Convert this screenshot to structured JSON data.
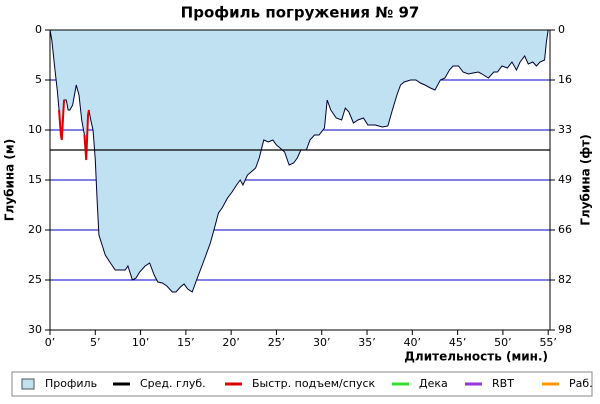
{
  "chart_data": {
    "type": "area",
    "title": "Профиль погружения № 97",
    "xlabel": "Длительность (мин.)",
    "ylabel": "Глубина (м)",
    "y2label": "Глубина (фт)",
    "xlim": [
      0,
      55.2
    ],
    "xticks": [
      {
        "value": 0,
        "label": "0’"
      },
      {
        "value": 5,
        "label": "5’"
      },
      {
        "value": 10,
        "label": "10’"
      },
      {
        "value": 15,
        "label": "15’"
      },
      {
        "value": 20,
        "label": "20’"
      },
      {
        "value": 25,
        "label": "25’"
      },
      {
        "value": 30,
        "label": "30’"
      },
      {
        "value": 35,
        "label": "35’"
      },
      {
        "value": 40,
        "label": "40’"
      },
      {
        "value": 45,
        "label": "45’"
      },
      {
        "value": 50,
        "label": "50’"
      },
      {
        "value": 55,
        "label": "55’"
      }
    ],
    "ylim": [
      0,
      30
    ],
    "yticks": [
      0,
      5,
      10,
      15,
      20,
      25,
      30
    ],
    "y2lim": [
      0,
      98.4
    ],
    "y2ticks": [
      0,
      {
        "value": 16.4,
        "label": "16"
      },
      {
        "value": 32.8,
        "label": "33"
      },
      {
        "value": 49.2,
        "label": "49"
      },
      {
        "value": 65.6,
        "label": "66"
      },
      {
        "value": 82,
        "label": "82"
      },
      {
        "value": 98.4,
        "label": "98"
      }
    ],
    "grid": true,
    "x": [
      0,
      0.2,
      0.55,
      0.8,
      1.0,
      1.2,
      1.3,
      1.55,
      1.8,
      2.0,
      2.2,
      2.5,
      2.9,
      3.2,
      3.5,
      3.8,
      4.0,
      4.2,
      4.3,
      4.5,
      4.75,
      5.0,
      5.2,
      5.4,
      5.75,
      6.1,
      6.6,
      7.2,
      7.7,
      8.3,
      8.6,
      9.1,
      9.5,
      9.9,
      10.5,
      11.0,
      11.5,
      11.9,
      12.4,
      12.9,
      13.5,
      13.9,
      14.4,
      14.8,
      15.2,
      15.7,
      16.1,
      16.6,
      17.1,
      17.7,
      18.1,
      18.6,
      19.0,
      19.6,
      20.1,
      20.6,
      21.0,
      21.3,
      21.8,
      22.2,
      22.7,
      23.1,
      23.6,
      24.1,
      24.6,
      25.0,
      25.4,
      25.9,
      26.4,
      26.9,
      27.3,
      27.7,
      28.3,
      28.7,
      29.2,
      29.7,
      30.3,
      30.6,
      31.0,
      31.6,
      32.2,
      32.6,
      33.0,
      33.5,
      34.0,
      34.6,
      35.1,
      35.9,
      36.7,
      37.3,
      37.8,
      38.3,
      38.7,
      39.1,
      39.8,
      40.4,
      40.9,
      41.4,
      42.0,
      42.5,
      43.1,
      43.6,
      44.1,
      44.5,
      45.1,
      45.6,
      46.2,
      46.7,
      47.3,
      47.7,
      48.4,
      49.0,
      49.4,
      49.9,
      50.5,
      51.0,
      51.5,
      51.9,
      52.4,
      52.8,
      53.3,
      53.7,
      54.1,
      54.6,
      54.8,
      55.0
    ],
    "series": [
      {
        "name": "Профиль",
        "color": "#bfe1f2",
        "line_color": "#000033",
        "values": [
          0,
          1,
          4,
          6,
          8,
          10.5,
          11,
          7,
          7,
          8,
          8,
          7.5,
          5.5,
          6.5,
          9,
          10.5,
          13,
          8.5,
          8,
          9,
          10,
          13,
          17,
          20.5,
          21.5,
          22.5,
          23.2,
          24,
          24,
          24,
          23.6,
          25,
          24.8,
          24.2,
          23.6,
          23.3,
          24.5,
          25.2,
          25.3,
          25.6,
          26.2,
          26.2,
          25.7,
          25.4,
          25.9,
          26.2,
          25.2,
          24,
          22.8,
          21.3,
          20,
          18.3,
          17.8,
          16.8,
          16.2,
          15.5,
          15,
          15.5,
          14.5,
          14.2,
          13.8,
          12.8,
          11,
          11.2,
          11,
          11.5,
          11.8,
          12.2,
          13.5,
          13.3,
          12.8,
          12,
          12,
          11,
          10.5,
          10.5,
          9.8,
          7,
          8,
          8.8,
          9,
          7.8,
          8.2,
          9.3,
          9,
          8.8,
          9.5,
          9.5,
          9.7,
          9.6,
          8,
          6.5,
          5.5,
          5.2,
          5,
          5,
          5.3,
          5.5,
          5.8,
          6,
          5,
          4.8,
          4,
          3.6,
          3.6,
          4.2,
          4.4,
          4.3,
          4.2,
          4.4,
          4.8,
          4.2,
          4.2,
          3.6,
          3.8,
          3.2,
          4,
          3.2,
          2.6,
          3.4,
          3.2,
          3.6,
          3.2,
          3,
          1.2,
          0
        ]
      },
      {
        "name": "Сред. глуб.",
        "color": "#000000",
        "level": 12
      },
      {
        "name": "Быстр. подъем/спуск",
        "color": "#dd0000",
        "x": [
          1.0,
          1.2,
          1.3,
          1.55,
          2.5,
          3.8,
          4.0,
          4.2,
          4.3
        ],
        "values": [
          8,
          10.5,
          11,
          7,
          null,
          10.5,
          13,
          8.5,
          8
        ]
      },
      {
        "name": "Дека",
        "color": "#33dd33"
      },
      {
        "name": "RBT",
        "color": "#9933dd"
      },
      {
        "name": "Раб.",
        "color": "#ff9900"
      }
    ]
  }
}
